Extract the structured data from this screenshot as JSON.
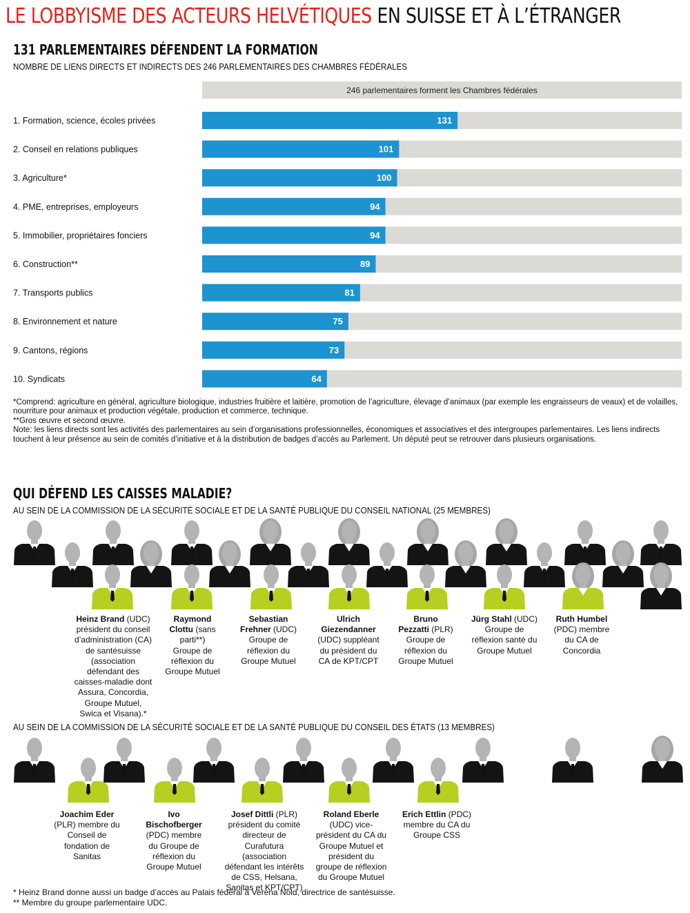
{
  "header": {
    "title_red": "LE LOBBYISME DES ACTEURS HELVÉTIQUES",
    "title_black": " EN SUISSE ET À L’ÉTRANGER"
  },
  "section1": {
    "heading": "131 PARLEMENTAIRES DÉFENDENT LA FORMATION",
    "subheading": "NOMBRE DE LIENS DIRECTS ET INDIRECTS DES 246 PARLEMENTAIRES DES CHAMBRES FÉDÉRALES"
  },
  "chart_data": {
    "type": "bar",
    "orientation": "horizontal",
    "total_bar_label": "246 parlementaires forment les Chambres fédérales",
    "total": 246,
    "categories": [
      "1. Formation, science, écoles privées",
      "2. Conseil en relations publiques",
      "3. Agriculture*",
      "4. PME, entreprises, employeurs",
      "5. Immobilier, propriétaires fonciers",
      "6. Construction**",
      "7. Transports publics",
      "8. Environnement et nature",
      "9. Cantons, régions",
      "10. Syndicats"
    ],
    "values": [
      131,
      101,
      100,
      94,
      94,
      89,
      81,
      75,
      73,
      64
    ],
    "xlim": [
      0,
      246
    ],
    "bar_color": "#1d93cf",
    "background_color": "#dcdad5"
  },
  "notes": [
    "*Comprend: agriculture en général, agriculture biologique, industries fruitière et laitière, promotion de l’agriculture, élevage d’animaux (par exemple les engraisseurs de veaux) et de volailles, nourriture pour animaux et production végétale, production et commerce, technique.",
    "**Gros œuvre et second œuvre.",
    "Note: les liens directs sont les activités des parlementaires au sein d’organisations professionnelles, économiques et associatives et des intergroupes parlementaires. Les liens indirects touchent à leur présence au sein de comités d’initiative et à la distribution de badges d’accès au Parlement. Un député peut se retrouver dans plusieurs organisations."
  ],
  "section2": {
    "heading": "QUI DÉFEND LES CAISSES MALADIE?",
    "national_label": "AU SEIN DE LA COMMISSION DE LA SÉCURITÉ SOCIALE ET DE LA SANTÉ PUBLIQUE DU CONSEIL NATIONAL (25 MEMBRES)",
    "national_people": [
      {
        "name": "Heinz Brand",
        "party": "(UDC)",
        "lines": [
          "président du conseil",
          "d’administration (CA)",
          "de santésuisse",
          "(association défendant",
          "des caisses-maladie",
          "dont Assura, Concordia,",
          "Groupe Mutuel,",
          "Swica et Visana).*"
        ]
      },
      {
        "name": "Raymond Clottu",
        "party": "(sans parti**)",
        "lines": [
          "Groupe de réflexion",
          "du Groupe",
          "Mutuel"
        ]
      },
      {
        "name": "Sebastian Frehner",
        "party": "(UDC)",
        "lines": [
          "Groupe",
          "de réflexion",
          "du Groupe Mutuel"
        ]
      },
      {
        "name": "Ulrich Giezendanner",
        "party": "(UDC)",
        "lines": [
          "suppléant",
          "du président",
          "du CA",
          "de KPT/CPT"
        ]
      },
      {
        "name": "Bruno Pezzatti",
        "party": "(PLR)",
        "lines": [
          "Groupe",
          "de réflexion",
          "du Groupe",
          "Mutuel"
        ]
      },
      {
        "name": "Jürg Stahl",
        "party": "(UDC)",
        "lines": [
          "Groupe",
          "de réflexion santé",
          "du Groupe Mutuel"
        ]
      },
      {
        "name": "Ruth Humbel",
        "party": "(PDC)",
        "lines": [
          "membre",
          "du CA",
          "de Concordia"
        ]
      }
    ],
    "states_label": "AU SEIN DE LA COMMISSION DE LA SÉCURITÉ SOCIALE ET DE LA SANTÉ PUBLIQUE DU CONSEIL DES ÉTATS (13 MEMBRES)",
    "states_people": [
      {
        "name": "Joachim Eder",
        "party": "(PLR)",
        "lines": [
          "membre",
          "du Conseil",
          "de fondation",
          "de Sanitas"
        ]
      },
      {
        "name": "Ivo Bischofberger",
        "party": "(PDC)",
        "lines": [
          "membre",
          "du Groupe",
          "de réflexion du",
          "Groupe Mutuel"
        ]
      },
      {
        "name": "Josef Dittli",
        "party": "(PLR)",
        "lines": [
          "président du comité",
          "directeur de Curafutura",
          "(association défendant",
          "les intérêts de CSS,",
          "Helsana, Sanitas",
          "et KPT/CPT)"
        ]
      },
      {
        "name": "Roland Eberle",
        "party": "(UDC)",
        "lines": [
          "vice-",
          "président du CA",
          "du Groupe Mutuel",
          "et président du",
          "groupe de réflexion",
          "du Groupe Mutuel"
        ]
      },
      {
        "name": "Erich Ettlin",
        "party": "(PDC)",
        "lines": [
          "membre",
          "du CA",
          "du Groupe CSS"
        ]
      }
    ],
    "colors": {
      "highlight": "#b6cf20",
      "member": "#141414",
      "head": "#b4b4b4"
    }
  },
  "footnotes": [
    "* Heinz Brand donne aussi un badge d’accès au Palais fédéral à Verena Nold, directrice de santésuisse.",
    "** Membre du groupe parlementaire UDC."
  ]
}
